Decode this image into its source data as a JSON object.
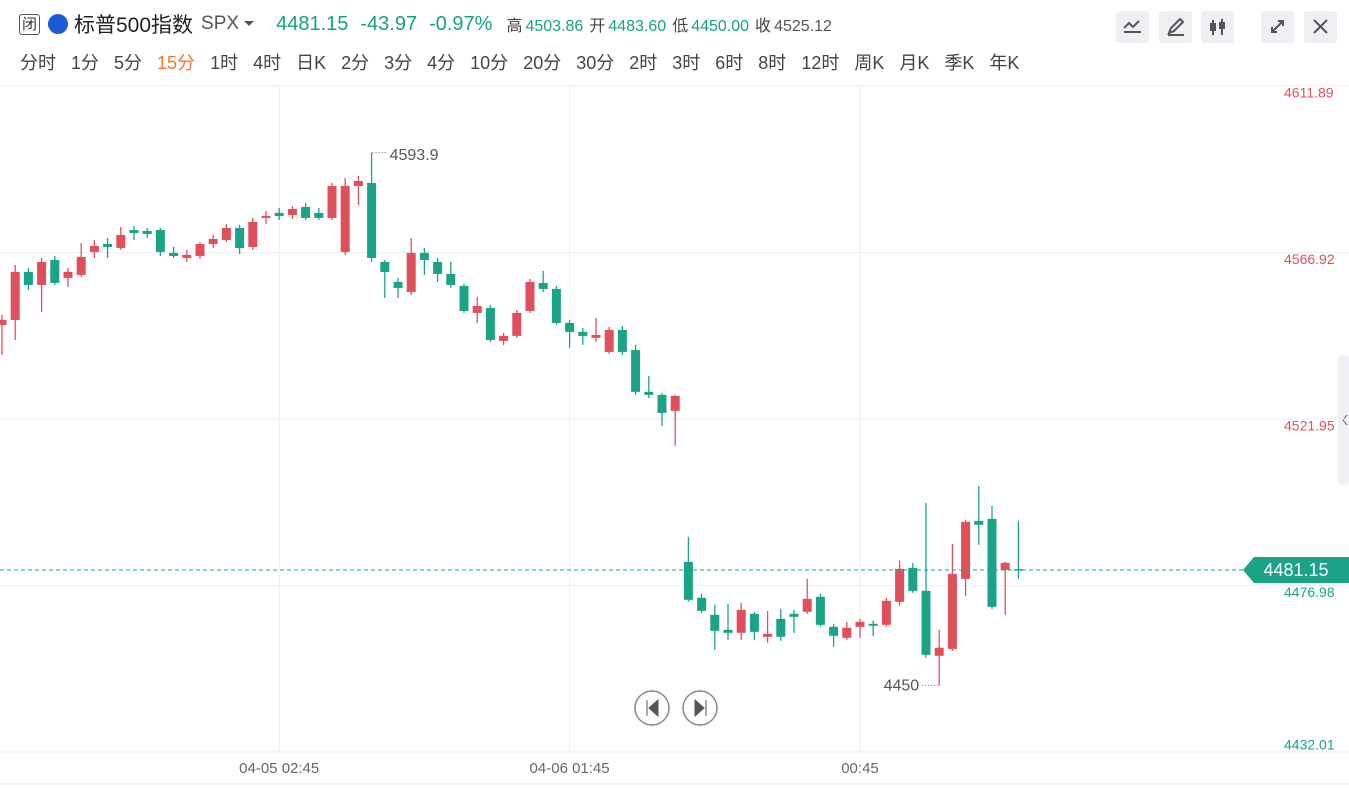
{
  "quote": {
    "status": "闭",
    "name": "标普500指数",
    "symbol": "SPX",
    "price": "4481.15",
    "change": "-43.97",
    "change_pct": "-0.97%",
    "stats": [
      {
        "label": "高",
        "value": "4503.86"
      },
      {
        "label": "开",
        "value": "4483.60"
      },
      {
        "label": "低",
        "value": "4450.00"
      },
      {
        "label": "收",
        "value": "4525.12"
      }
    ]
  },
  "periods": [
    "分时",
    "1分",
    "5分",
    "15分",
    "1时",
    "4时",
    "日K",
    "2分",
    "3分",
    "4分",
    "10分",
    "20分",
    "30分",
    "2时",
    "3时",
    "6时",
    "8时",
    "12时",
    "周K",
    "月K",
    "季K",
    "年K"
  ],
  "active_period": "15分",
  "chart_data": {
    "type": "candlestick",
    "up_color": "#e0505a",
    "down_color": "#1aa386",
    "grid": true,
    "categories": [
      null,
      null,
      null,
      null,
      null,
      null,
      null,
      null,
      null,
      null,
      null,
      null,
      null,
      null,
      null,
      null,
      null,
      null,
      null,
      null,
      null,
      "04-05 02:45",
      null,
      null,
      null,
      null,
      null,
      null,
      null,
      null,
      null,
      null,
      null,
      null,
      null,
      null,
      null,
      null,
      null,
      null,
      null,
      null,
      null,
      "04-06 01:45",
      null,
      null,
      null,
      null,
      null,
      null,
      null,
      null,
      null,
      null,
      null,
      null,
      null,
      null,
      null,
      null,
      null,
      null,
      null,
      null,
      null,
      "00:45",
      null,
      null,
      null,
      null,
      null,
      null,
      null,
      null,
      null,
      null,
      null,
      null
    ],
    "open": [
      4547.36,
      4548.71,
      4561.67,
      4558.16,
      4564.91,
      4560.05,
      4560.86,
      4567.07,
      4569.23,
      4568.15,
      4573.01,
      4572.74,
      4573.01,
      4566.8,
      4565.45,
      4565.99,
      4569.23,
      4570.31,
      4573.55,
      4568.42,
      4576.25,
      4577.6,
      4577.06,
      4579.22,
      4577.6,
      4576.25,
      4567.07,
      4584.89,
      4585.7,
      4564.37,
      4558.97,
      4556.27,
      4566.8,
      4564.37,
      4561.13,
      4557.89,
      4550.6,
      4551.95,
      4543.04,
      4544.39,
      4551.14,
      4558.7,
      4557.08,
      4547.9,
      4545.47,
      4543.85,
      4540.07,
      4546.01,
      4540.61,
      4529.27,
      4528.46,
      4524.14,
      4483.37,
      4473.65,
      4469.06,
      4465.01,
      4464.2,
      4469.33,
      4463.12,
      4467.98,
      4469.33,
      4469.87,
      4473.92,
      4465.82,
      4462.85,
      4465.82,
      4466.63,
      4466.36,
      4472.57,
      4481.75,
      4475.54,
      4457.99,
      4459.88,
      4478.78,
      4494.44,
      4494.98,
      4481.21,
      4481.4
    ],
    "high": [
      4550.06,
      4563.56,
      4562.75,
      4565.45,
      4565.99,
      4562.75,
      4569.5,
      4570.31,
      4570.85,
      4573.82,
      4574.09,
      4573.55,
      4573.55,
      4568.42,
      4567.61,
      4569.77,
      4571.66,
      4574.63,
      4574.36,
      4576.25,
      4578.14,
      4578.95,
      4579.49,
      4580.3,
      4578.95,
      4585.7,
      4587.05,
      4587.59,
      4593.9,
      4564.91,
      4560.05,
      4570.85,
      4568.15,
      4565.45,
      4564.37,
      4558.43,
      4554.92,
      4552.76,
      4545.2,
      4551.41,
      4559.78,
      4561.94,
      4557.89,
      4548.71,
      4546.55,
      4549.25,
      4546.82,
      4547.09,
      4541.96,
      4533.59,
      4529.0,
      4528.46,
      4490.12,
      4474.73,
      4471.76,
      4472.03,
      4472.3,
      4469.87,
      4470.14,
      4470.68,
      4470.41,
      4478.78,
      4474.73,
      4466.63,
      4467.17,
      4467.98,
      4467.44,
      4473.65,
      4483.64,
      4483.1,
      4499.3,
      4465.01,
      4488.23,
      4494.71,
      4503.86,
      4498.49,
      4483.37,
      4494.44
    ],
    "low": [
      4539.26,
      4543.31,
      4556.81,
      4550.87,
      4558.16,
      4557.62,
      4560.32,
      4565.45,
      4565.45,
      4567.61,
      4570.31,
      4570.85,
      4565.99,
      4565.45,
      4564.37,
      4565.18,
      4568.15,
      4569.77,
      4566.53,
      4567.61,
      4574.63,
      4575.71,
      4575.98,
      4575.71,
      4575.71,
      4575.71,
      4566.26,
      4579.76,
      4564.37,
      4554.65,
      4554.65,
      4555.46,
      4560.86,
      4558.97,
      4557.35,
      4550.6,
      4547.9,
      4542.77,
      4541.96,
      4543.85,
      4550.6,
      4556.27,
      4547.36,
      4541.15,
      4541.96,
      4542.77,
      4539.53,
      4539.26,
      4528.46,
      4527.65,
      4520.09,
      4514.69,
      4472.57,
      4469.6,
      4459.61,
      4462.31,
      4462.31,
      4462.31,
      4461.5,
      4462.04,
      4464.2,
      4469.33,
      4465.82,
      4460.42,
      4462.31,
      4462.85,
      4463.39,
      4465.82,
      4471.49,
      4475.0,
      4457.45,
      4450.0,
      4459.34,
      4474.19,
      4487.96,
      4470.68,
      4469.06,
      4478.78
    ],
    "close": [
      4548.71,
      4561.67,
      4558.16,
      4564.37,
      4558.7,
      4561.67,
      4565.72,
      4568.69,
      4568.42,
      4571.66,
      4572.2,
      4571.93,
      4567.07,
      4565.99,
      4566.26,
      4569.23,
      4570.58,
      4573.55,
      4568.15,
      4575.17,
      4576.79,
      4576.79,
      4578.68,
      4576.25,
      4576.25,
      4584.89,
      4584.89,
      4586.24,
      4565.45,
      4561.67,
      4557.35,
      4566.8,
      4564.91,
      4561.13,
      4558.16,
      4551.14,
      4552.49,
      4543.31,
      4544.39,
      4550.6,
      4558.97,
      4557.08,
      4547.9,
      4545.47,
      4544.39,
      4544.66,
      4546.01,
      4540.07,
      4529.27,
      4528.46,
      4523.6,
      4528.19,
      4473.11,
      4470.14,
      4464.74,
      4464.2,
      4470.41,
      4464.47,
      4463.93,
      4463.12,
      4468.52,
      4473.38,
      4466.36,
      4463.39,
      4465.55,
      4467.17,
      4466.09,
      4472.84,
      4481.48,
      4475.54,
      4458.26,
      4460.15,
      4480.13,
      4494.17,
      4493.36,
      4471.22,
      4483.1,
      4481.15
    ],
    "ylim": [
      4432.01,
      4611.89
    ],
    "yticks": [
      4432.01,
      4476.98,
      4521.95,
      4566.92,
      4611.89
    ]
  }
}
